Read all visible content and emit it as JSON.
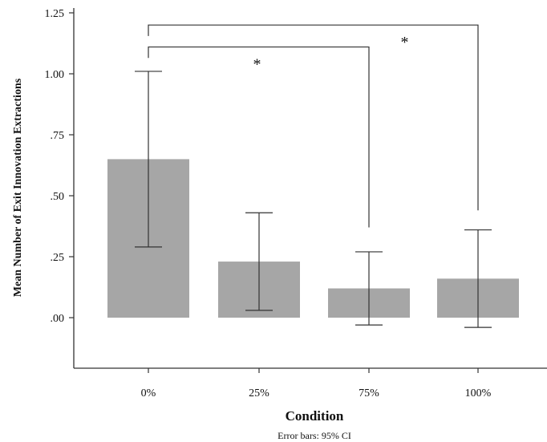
{
  "chart_data": {
    "type": "bar",
    "categories": [
      "0%",
      "25%",
      "75%",
      "100%"
    ],
    "values": [
      0.65,
      0.23,
      0.12,
      0.16
    ],
    "error_bars": {
      "lower": [
        0.29,
        0.03,
        -0.03,
        -0.04
      ],
      "upper": [
        1.01,
        0.43,
        0.27,
        0.36
      ]
    },
    "y_ticks": [
      ".00",
      ".25",
      ".50",
      ".75",
      "1.00",
      "1.25"
    ],
    "ylim": [
      -0.2,
      1.27
    ],
    "xlabel": "Condition",
    "ylabel": "Mean Number of Exit Innovation Extractions",
    "note": "Error bars: 95% CI",
    "bar_color": "#a6a6a6",
    "line_color": "#333333",
    "grid": false,
    "significance": [
      {
        "from": "0%",
        "to": "75%",
        "label": "*",
        "level": 1.11
      },
      {
        "from": "0%",
        "to": "100%",
        "label": "*",
        "level": 1.2
      }
    ]
  }
}
